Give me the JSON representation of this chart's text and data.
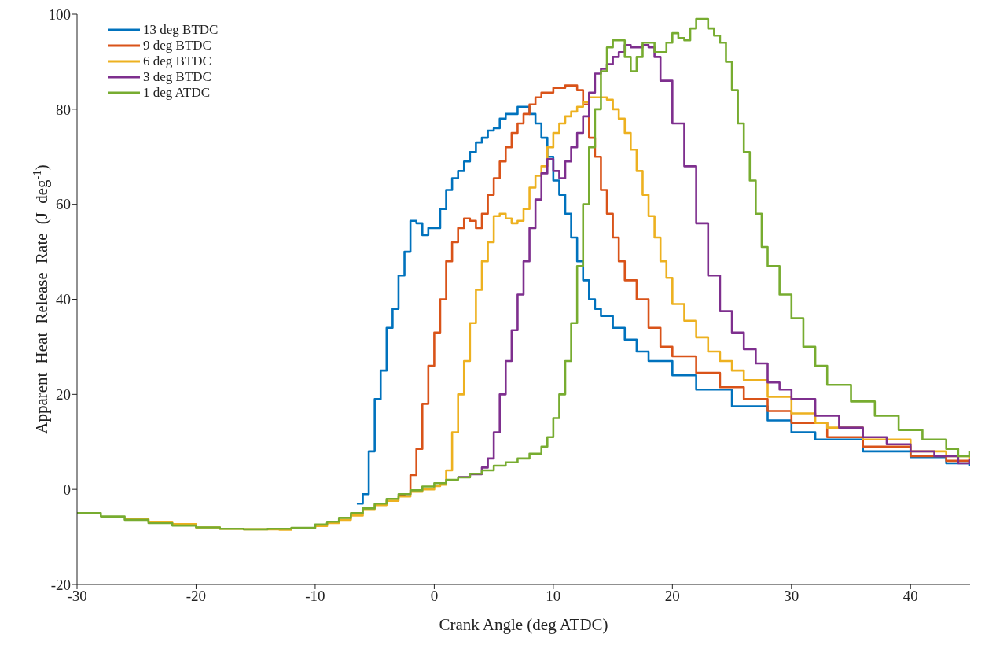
{
  "chart_data": {
    "type": "step",
    "xlabel": "Crank Angle (deg ATDC)",
    "ylabel": "Apparent Heat Release Rate (J deg$^{-1}$)",
    "xlim": [
      -30,
      45
    ],
    "xticks": [
      -30,
      -20,
      -10,
      0,
      10,
      20,
      30,
      40
    ],
    "ylim": [
      -20,
      100
    ],
    "yticks": [
      -20,
      0,
      20,
      40,
      60,
      80,
      100
    ],
    "grid": false,
    "legend": "top left",
    "series": [
      {
        "name": "13 deg BTDC",
        "color": "#0072bd",
        "x": [
          -6.5,
          -6,
          -5.5,
          -5,
          -4.5,
          -4,
          -3.5,
          -3,
          -2.5,
          -2,
          -1.5,
          -1,
          -0.5,
          0,
          0.5,
          1,
          1.5,
          2,
          2.5,
          3,
          3.5,
          4,
          4.5,
          5,
          5.5,
          6,
          6.5,
          7,
          7.5,
          8,
          8.5,
          9,
          9.5,
          10,
          10.5,
          11,
          11.5,
          12,
          12.5,
          13,
          13.5,
          14,
          15,
          16,
          17,
          18,
          20,
          22,
          25,
          28,
          30,
          32,
          36,
          40,
          43,
          45
        ],
        "values": [
          -3,
          -1,
          8,
          19,
          25,
          34,
          38,
          45,
          50,
          56.5,
          56,
          53.5,
          55,
          55,
          59,
          63,
          65.5,
          67,
          69,
          71,
          73,
          74,
          75.5,
          76,
          78,
          79,
          79,
          80.5,
          80.5,
          79,
          77,
          74,
          70,
          65,
          62,
          58,
          53,
          48,
          44,
          40,
          38,
          36.5,
          34,
          31.5,
          29,
          27,
          24,
          21,
          17.5,
          14.5,
          12,
          10.5,
          8,
          6.8,
          5.5,
          5
        ]
      },
      {
        "name": "9 deg BTDC",
        "color": "#d95319",
        "x": [
          -3,
          -2.5,
          -2,
          -1.5,
          -1,
          -0.5,
          0,
          0.5,
          1,
          1.5,
          2,
          2.5,
          3,
          3.5,
          4,
          4.5,
          5,
          5.5,
          6,
          6.5,
          7,
          7.5,
          8,
          8.5,
          9,
          10,
          11,
          12,
          12.5,
          13,
          13.5,
          14,
          14.5,
          15,
          15.5,
          16,
          17,
          18,
          19,
          20,
          22,
          24,
          26,
          28,
          30,
          33,
          36,
          40,
          43,
          45
        ],
        "values": [
          -1.2,
          -1,
          3,
          8.5,
          18,
          26,
          33,
          40,
          48,
          52,
          55,
          57,
          56.5,
          55,
          58,
          62,
          65.5,
          69,
          72,
          75,
          77,
          79,
          81,
          82.5,
          83.5,
          84.5,
          85,
          84,
          81,
          74,
          70,
          63,
          58,
          53,
          48,
          44,
          40,
          34,
          30,
          28,
          24.5,
          21.5,
          19,
          16.5,
          14,
          11,
          9,
          7,
          6,
          5.5
        ]
      },
      {
        "name": "6 deg BTDC",
        "color": "#edb120",
        "x": [
          -26,
          -24,
          -22,
          -20,
          -18,
          -16,
          -14,
          -13,
          -12,
          -10,
          -9,
          -8,
          -7,
          -6,
          -5,
          -4,
          -3,
          -2,
          -1,
          0,
          0.5,
          1,
          1.5,
          2,
          2.5,
          3,
          3.5,
          4,
          4.5,
          5,
          5.5,
          6,
          6.5,
          7,
          7.5,
          8,
          8.5,
          9,
          9.5,
          10,
          10.5,
          11,
          11.5,
          12,
          12.5,
          13,
          14,
          14.5,
          15,
          15.5,
          16,
          16.5,
          17,
          17.5,
          18,
          18.5,
          19,
          19.5,
          20,
          21,
          22,
          23,
          24,
          25,
          26,
          28,
          30,
          32,
          33,
          36,
          40,
          43,
          45
        ],
        "values": [
          -6.2,
          -6.8,
          -7.3,
          -8,
          -8.3,
          -8.4,
          -8.4,
          -8.5,
          -8.2,
          -7.7,
          -7.1,
          -6.4,
          -5.5,
          -4.3,
          -3.3,
          -2.4,
          -1.5,
          -0.5,
          0,
          0.7,
          1,
          4,
          12,
          20,
          27,
          35,
          42,
          48,
          52,
          57.5,
          58,
          57,
          56,
          56.5,
          59,
          63.5,
          66,
          68,
          72,
          75,
          77,
          78.5,
          79.5,
          80.5,
          81.5,
          82.5,
          82.5,
          82,
          80,
          78,
          75,
          71.5,
          67,
          62,
          57.5,
          53,
          48,
          44.5,
          39,
          35.5,
          32,
          29,
          27,
          25,
          23,
          19.5,
          16,
          14,
          13,
          10.5,
          8,
          7,
          6.5
        ]
      },
      {
        "name": "3 deg BTDC",
        "color": "#7e2f8e",
        "x": [
          2,
          3,
          4,
          4.5,
          5,
          5.5,
          6,
          6.5,
          7,
          7.5,
          8,
          8.5,
          9,
          9.5,
          10,
          10.5,
          11,
          11.5,
          12,
          12.5,
          13,
          13.5,
          14,
          14.5,
          15,
          15.5,
          16,
          16.5,
          17,
          17.5,
          18,
          18.5,
          19,
          20,
          21,
          22,
          23,
          24,
          25,
          26,
          27,
          28,
          29,
          30,
          32,
          34,
          36,
          38,
          40,
          42,
          44,
          45
        ],
        "values": [
          2.6,
          3.2,
          4.6,
          6.5,
          12,
          20,
          27,
          33.5,
          41,
          48,
          55,
          61,
          66.5,
          69.5,
          67,
          65.5,
          69,
          72,
          75,
          78.5,
          83.5,
          87.5,
          88.5,
          89.5,
          91,
          92,
          93.5,
          93,
          93,
          93.5,
          93,
          91,
          86,
          77,
          68,
          56,
          45,
          37.5,
          33,
          29.5,
          26.5,
          22.5,
          21,
          19,
          15.5,
          13,
          11,
          9.5,
          8,
          7,
          5.5,
          6.5
        ]
      },
      {
        "name": "1 deg ATDC",
        "color": "#77ac30",
        "x": [
          -30,
          -28,
          -26,
          -24,
          -22,
          -20,
          -18,
          -16,
          -14,
          -12,
          -10,
          -9,
          -8,
          -7,
          -6,
          -5,
          -4,
          -3,
          -2,
          -1,
          0,
          1,
          2,
          3,
          4,
          5,
          6,
          7,
          8,
          9,
          9.5,
          10,
          10.5,
          11,
          11.5,
          12,
          12.5,
          13,
          13.5,
          14,
          14.5,
          15,
          15.5,
          16,
          16.5,
          17,
          17.5,
          18,
          18.5,
          19,
          19.5,
          20,
          20.5,
          21,
          21.5,
          22,
          22.5,
          23,
          23.5,
          24,
          24.5,
          25,
          25.5,
          26,
          26.5,
          27,
          27.5,
          28,
          29,
          30,
          31,
          32,
          33,
          35,
          37,
          39,
          41,
          43,
          44,
          45
        ],
        "values": [
          -5,
          -5.7,
          -6.4,
          -7.1,
          -7.6,
          -8,
          -8.3,
          -8.4,
          -8.3,
          -8.1,
          -7.4,
          -6.8,
          -6,
          -5,
          -4,
          -3,
          -2,
          -1,
          -0.2,
          0.6,
          1.3,
          2,
          2.5,
          3.3,
          4,
          5,
          5.7,
          6.5,
          7.5,
          9,
          11,
          15,
          20,
          27,
          35,
          47,
          60,
          72,
          80,
          88,
          93,
          94.5,
          94.5,
          91,
          88,
          91,
          94,
          94,
          92,
          92,
          94,
          96,
          95,
          94.5,
          97,
          99,
          99,
          97,
          95.5,
          94,
          90,
          84,
          77,
          71,
          65,
          58,
          51,
          47,
          41,
          36,
          30,
          26,
          22,
          18.5,
          15.5,
          12.5,
          10.5,
          8.5,
          7,
          8
        ]
      }
    ]
  }
}
